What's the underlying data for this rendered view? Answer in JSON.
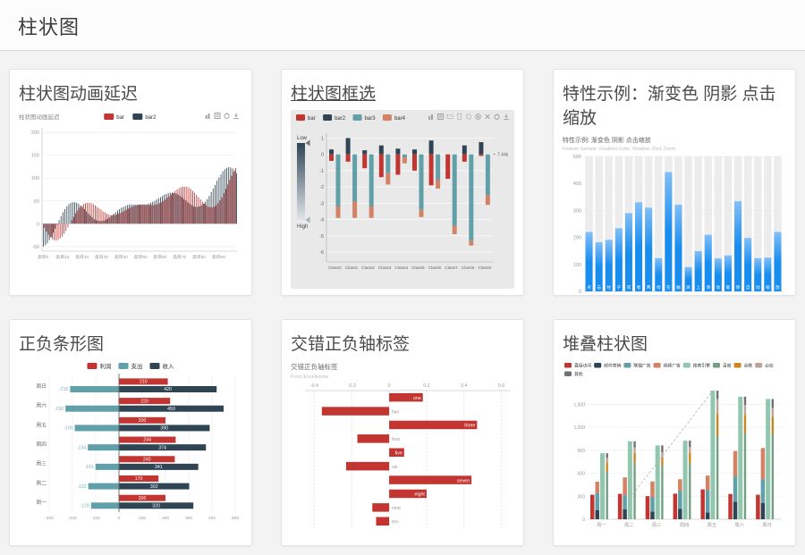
{
  "page": {
    "title": "柱状图"
  },
  "cards": [
    {
      "title": "柱状图动画延迟"
    },
    {
      "title": "柱状图框选"
    },
    {
      "title": "特性示例：渐变色 阴影 点击缩放"
    },
    {
      "title": "正负条形图"
    },
    {
      "title": "交错正负轴标签"
    },
    {
      "title": "堆叠柱状图"
    }
  ],
  "chart_data": [
    {
      "type": "bar",
      "variant": "animation-delay",
      "title": "柱状图动画延迟",
      "legend": [
        {
          "name": "bar",
          "color": "#c23531"
        },
        {
          "name": "bar2",
          "color": "#2f4554"
        }
      ],
      "toolbox": [
        "magic-type",
        "data-view",
        "restore",
        "save-image"
      ],
      "category_prefix": "类目",
      "category_count": 100,
      "x_tick_labels": [
        "类目0",
        "类目10",
        "类目20",
        "类目30",
        "类目40",
        "类目50",
        "类目60",
        "类目70",
        "类目80",
        "类目90"
      ],
      "ylim": [
        -60,
        210
      ],
      "yticks": [
        -50,
        0,
        50,
        100,
        150,
        200
      ],
      "series": [
        {
          "name": "bar",
          "color": "#c23531",
          "values": [
            0,
            -9,
            -17,
            -24,
            -30,
            -34,
            -36,
            -37,
            -35,
            -32,
            -28,
            -22,
            -16,
            -8,
            0,
            8,
            15,
            23,
            29,
            35,
            39,
            43,
            45,
            46,
            46,
            45,
            43,
            40,
            37,
            34,
            31,
            27,
            25,
            22,
            20,
            19,
            19,
            19,
            20,
            22,
            23,
            26,
            28,
            31,
            33,
            35,
            37,
            39,
            40,
            41,
            42,
            42,
            42,
            41,
            41,
            41,
            41,
            41,
            42,
            43,
            45,
            47,
            50,
            53,
            57,
            60,
            64,
            68,
            72,
            75,
            78,
            80,
            81,
            81,
            81,
            79,
            76,
            72,
            68,
            63,
            58,
            53,
            48,
            44,
            40,
            37,
            36,
            36,
            37,
            40,
            45,
            51,
            58,
            67,
            76,
            86,
            96,
            105,
            114,
            122
          ]
        },
        {
          "name": "bar2",
          "color": "#2f4554",
          "values": [
            -50,
            -47,
            -43,
            -36,
            -29,
            -20,
            -11,
            -2,
            8,
            17,
            25,
            32,
            38,
            43,
            46,
            47,
            47,
            46,
            44,
            40,
            36,
            32,
            27,
            22,
            18,
            14,
            10,
            8,
            6,
            6,
            6,
            7,
            9,
            11,
            14,
            18,
            22,
            25,
            29,
            32,
            35,
            37,
            39,
            41,
            42,
            42,
            42,
            42,
            42,
            42,
            42,
            42,
            42,
            43,
            44,
            46,
            48,
            50,
            53,
            56,
            58,
            61,
            64,
            65,
            67,
            68,
            68,
            67,
            66,
            64,
            61,
            58,
            54,
            51,
            47,
            44,
            41,
            38,
            37,
            37,
            38,
            40,
            44,
            48,
            54,
            61,
            69,
            77,
            85,
            94,
            101,
            108,
            115,
            119,
            122,
            124,
            123,
            121,
            117,
            111
          ]
        }
      ]
    },
    {
      "type": "bar",
      "variant": "brush",
      "legend": [
        {
          "name": "bar",
          "color": "#c23531"
        },
        {
          "name": "bar2",
          "color": "#2f4554"
        },
        {
          "name": "bar3",
          "color": "#61a0a8"
        },
        {
          "name": "bar4",
          "color": "#d48265"
        }
      ],
      "toolbox": [
        "magic-type",
        "data-view",
        "horizontal-select",
        "vertical-select",
        "polygon-select",
        "keep-select",
        "clear-select",
        "restore",
        "save-image"
      ],
      "visual_map": {
        "low_label": "Low",
        "high_label": "High",
        "gradient": [
          "#2f4554",
          "#e0e4e9"
        ]
      },
      "categories": [
        "Class0",
        "Class1",
        "Class2",
        "Class3",
        "Class4",
        "Class5",
        "Class6",
        "Class7",
        "Class8",
        "Class9"
      ],
      "yticks": [
        1,
        0,
        -1,
        -2,
        -3,
        -4,
        -5,
        -6
      ],
      "annotation": "7.44k",
      "background_color": "#e9e9e9",
      "series": [
        {
          "name": "bar",
          "color": "#c23531",
          "stack": "one",
          "values": [
            -0.4,
            -0.45,
            -0.85,
            -1.4,
            -1.25,
            -1.0,
            -1.9,
            -1.5,
            -0.45,
            -0.1
          ]
        },
        {
          "name": "bar2",
          "color": "#2f4554",
          "stack": "one",
          "values": [
            0.3,
            1.0,
            0.25,
            0.55,
            0.35,
            0.3,
            0.85,
            0,
            0.55,
            0.75
          ]
        },
        {
          "name": "bar3",
          "color": "#61a0a8",
          "stack": "two",
          "values": [
            -3.2,
            -2.9,
            -3.2,
            -1.15,
            -0.2,
            -3.4,
            -1.55,
            -4.4,
            -5.3,
            -2.5
          ]
        },
        {
          "name": "bar4",
          "color": "#d48265",
          "stack": "two",
          "values": [
            -0.7,
            -1.0,
            -0.7,
            -0.7,
            -0.35,
            -0.45,
            -0.55,
            -0.5,
            -0.3,
            -0.6
          ]
        }
      ]
    },
    {
      "type": "bar",
      "variant": "gradient",
      "title": "特性示例: 渐变色 阴影 点击缩放",
      "subtitle": "Feature Sample: Gradient Color, Shadow, Click Zoom",
      "categories": [
        "点",
        "击",
        "柱",
        "子",
        "或",
        "者",
        "两",
        "指",
        "在",
        "触",
        "屏",
        "上",
        "滑",
        "动",
        "能",
        "够",
        "自",
        "动",
        "缩",
        "放"
      ],
      "values": [
        220,
        182,
        191,
        234,
        290,
        330,
        310,
        123,
        442,
        321,
        90,
        149,
        210,
        122,
        133,
        334,
        198,
        123,
        125,
        220
      ],
      "ylim": [
        0,
        500
      ],
      "yticks": [
        0,
        100,
        200,
        300,
        400,
        500
      ],
      "bar_gradient": [
        "#83bff6",
        "#188df0",
        "#188df0"
      ],
      "background_bar_color": "#ececec"
    },
    {
      "type": "bar",
      "variant": "pos-neg",
      "legend": [
        {
          "name": "利润",
          "color": "#c23531"
        },
        {
          "name": "支出",
          "color": "#61a0a8"
        },
        {
          "name": "收入",
          "color": "#2f4554"
        }
      ],
      "categories_top_to_bottom": [
        "周日",
        "周六",
        "周五",
        "周四",
        "周三",
        "周二",
        "周一"
      ],
      "xtick_labels": [
        "-300",
        "-200",
        "-100",
        "0",
        "100",
        "200",
        "300",
        "400",
        "500"
      ],
      "series": [
        {
          "name": "利润",
          "color": "#c23531",
          "values": [
            210,
            220,
            200,
            244,
            240,
            170,
            200
          ]
        },
        {
          "name": "收入",
          "color": "#2f4554",
          "stack": "总量",
          "values": [
            420,
            450,
            390,
            374,
            341,
            302,
            320
          ]
        },
        {
          "name": "支出",
          "color": "#61a0a8",
          "stack": "总量",
          "values": [
            -210,
            -230,
            -190,
            -134,
            -101,
            -132,
            -120
          ]
        }
      ]
    },
    {
      "type": "bar",
      "variant": "staggered",
      "title": "交错正负轴标签",
      "subtitle": "From ExcelHome",
      "bar_color": "#c23531",
      "categories_top_to_bottom": [
        "one",
        "two",
        "three",
        "four",
        "five",
        "six",
        "seven",
        "eight",
        "nine",
        "ten"
      ],
      "values": [
        0.18,
        -0.36,
        0.47,
        -0.17,
        0.08,
        -0.23,
        0.44,
        0.2,
        -0.09,
        -0.07
      ],
      "xtick_labels": [
        "-0.4",
        "-0.2",
        "0",
        "0.2",
        "0.4",
        "0.6"
      ]
    },
    {
      "type": "bar",
      "variant": "stacked",
      "legend_rows": [
        [
          "直接访问",
          "邮件营销",
          "联盟广告",
          "视频广告",
          "搜索引擎",
          "百度",
          "谷歌",
          "必应"
        ],
        [
          "其他"
        ]
      ],
      "categories": [
        "周一",
        "周二",
        "周三",
        "周四",
        "周五",
        "周六",
        "周日"
      ],
      "ytick_values": [
        0,
        300,
        600,
        900,
        1200,
        1500
      ],
      "ytick_labels": [
        "0",
        "300",
        "600",
        "900",
        "1,200",
        "1,500"
      ],
      "trend_line": {
        "from_category": "周二",
        "from_value": 280,
        "to_category": "周五",
        "to_value": 1679,
        "style": "dashed"
      },
      "series": [
        {
          "name": "直接访问",
          "color": "#c23531",
          "values": [
            320,
            332,
            301,
            334,
            390,
            330,
            320
          ]
        },
        {
          "name": "邮件营销",
          "color": "#2f4554",
          "stack": "广告",
          "values": [
            120,
            132,
            101,
            134,
            90,
            230,
            210
          ]
        },
        {
          "name": "联盟广告",
          "color": "#61a0a8",
          "stack": "广告",
          "values": [
            220,
            182,
            191,
            234,
            290,
            330,
            310
          ]
        },
        {
          "name": "视频广告",
          "color": "#d48265",
          "stack": "广告",
          "values": [
            150,
            232,
            201,
            154,
            190,
            330,
            410
          ]
        },
        {
          "name": "搜索引擎",
          "color": "#91c7ae",
          "values": [
            862,
            1018,
            964,
            1026,
            1679,
            1600,
            1570
          ]
        },
        {
          "name": "百度",
          "color": "#749f83",
          "stack": "搜索引擎",
          "values": [
            620,
            732,
            701,
            734,
            1090,
            1130,
            1120
          ]
        },
        {
          "name": "谷歌",
          "color": "#ca8622",
          "stack": "搜索引擎",
          "values": [
            120,
            132,
            101,
            134,
            290,
            230,
            220
          ]
        },
        {
          "name": "必应",
          "color": "#bda29a",
          "stack": "搜索引擎",
          "values": [
            60,
            72,
            71,
            74,
            190,
            130,
            110
          ]
        },
        {
          "name": "其他",
          "color": "#6e7074",
          "stack": "搜索引擎",
          "values": [
            62,
            82,
            91,
            84,
            109,
            110,
            120
          ]
        }
      ]
    }
  ]
}
